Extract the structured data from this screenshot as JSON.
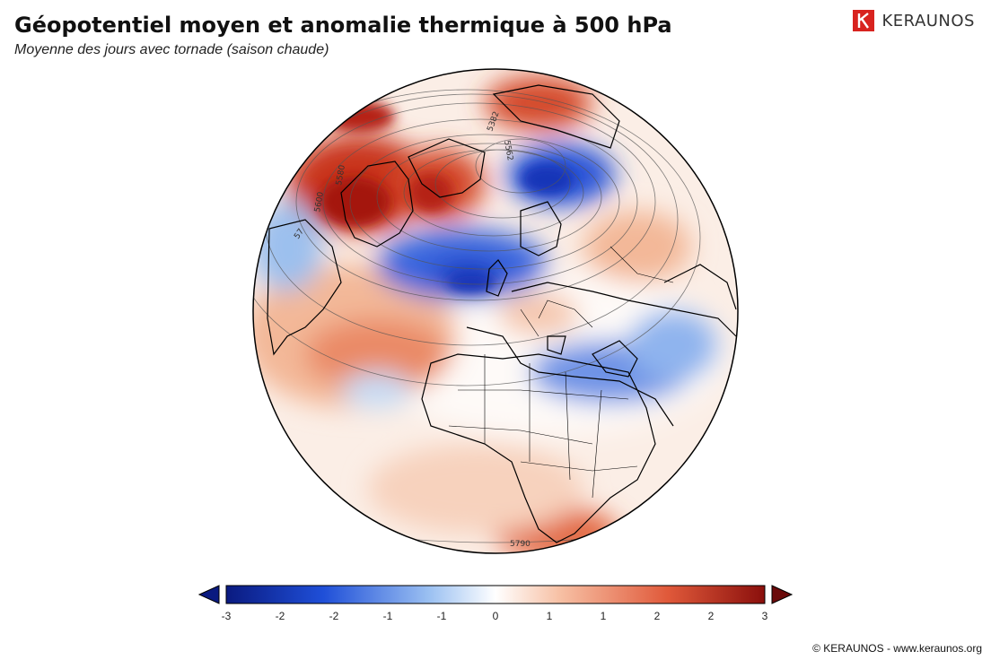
{
  "header": {
    "title": "Géopotentiel moyen et anomalie thermique à 500 hPa",
    "subtitle": "Moyenne des jours avec tornade (saison chaude)"
  },
  "brand": {
    "logo_letter": "K",
    "name": "KERAUNOS",
    "color": "#d8231f"
  },
  "map": {
    "projection": "orthographic globe",
    "contour_labels": [
      "5382",
      "5562",
      "5580",
      "5600",
      "57",
      "5790"
    ],
    "anomaly_palette": {
      "cold_strong": "#1a3fc4",
      "cold_light": "#b8d2f5",
      "neutral": "#ffffff",
      "warm_light": "#f6c4aa",
      "warm_strong": "#b81c10"
    }
  },
  "colorbar": {
    "ticks": [
      "-3",
      "-2",
      "-2",
      "-1",
      "-1",
      "0",
      "1",
      "1",
      "2",
      "2",
      "3"
    ],
    "colors": [
      "#0a1a80",
      "#1f4fd8",
      "#9dc2f2",
      "#ffffff",
      "#f7c0a4",
      "#e0593a",
      "#8a0f0c"
    ],
    "left_arrow_color": "#0a1a80",
    "right_arrow_color": "#6b0a0a"
  },
  "footer": {
    "copyright": "© KERAUNOS - www.keraunos.org"
  }
}
